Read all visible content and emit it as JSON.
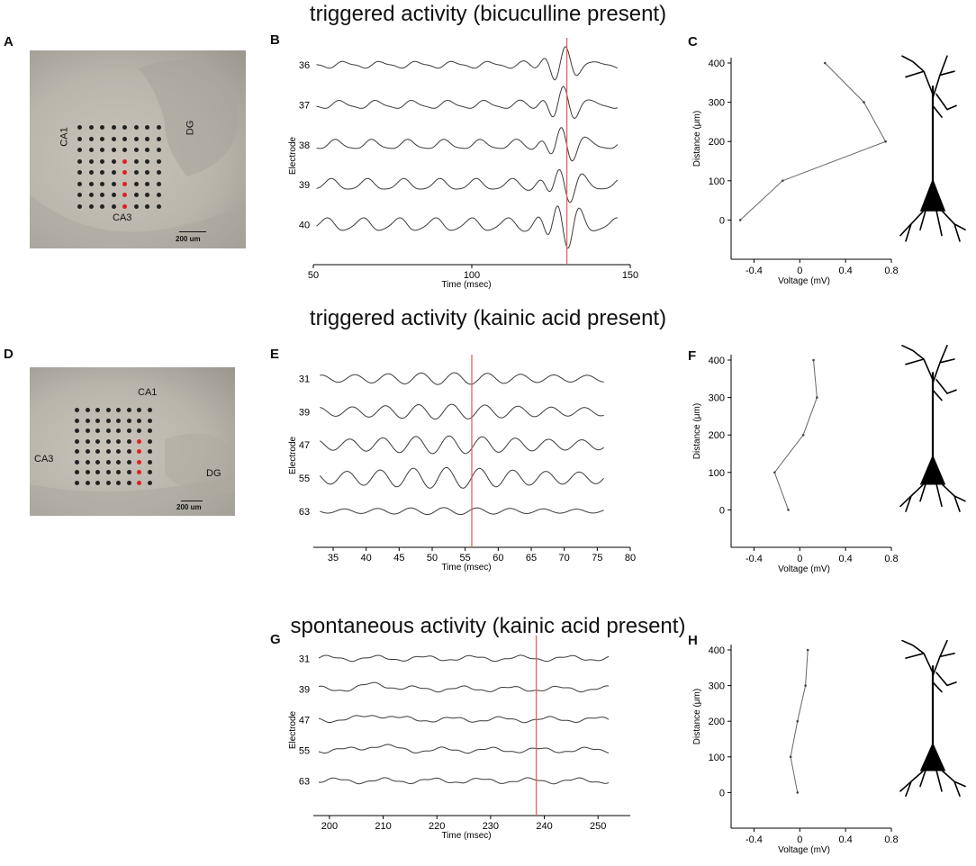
{
  "sections": {
    "top_title": "triggered activity (bicuculline present)",
    "middle_title": "triggered activity (kainic acid present)",
    "bottom_title": "spontaneous activity (kainic acid present)"
  },
  "panel_letters": {
    "A": "A",
    "B": "B",
    "C": "C",
    "D": "D",
    "E": "E",
    "F": "F",
    "G": "G",
    "H": "H"
  },
  "photo_A": {
    "labels": [
      "CA1",
      "DG",
      "CA3"
    ],
    "scale_bar": "200 um",
    "highlight_column": 4
  },
  "photo_D": {
    "labels": [
      "CA1",
      "CA3",
      "DG"
    ],
    "scale_bar": "200 um",
    "highlight_column": 6
  },
  "colors": {
    "trace": "#3a3a3a",
    "marker": "#e8605a",
    "electrode_dot": "#222222",
    "electrode_highlight": "#e02020"
  },
  "chart_data": [
    {
      "panel": "B",
      "type": "line",
      "xlabel": "Time (msec)",
      "ylabel": "Electrode",
      "xlim": [
        50,
        150
      ],
      "xticks": [
        50,
        100,
        150
      ],
      "electrodes": [
        "36",
        "37",
        "38",
        "39",
        "40"
      ],
      "marker_x": 130
    },
    {
      "panel": "C",
      "type": "line",
      "xlabel": "Voltage (mV)",
      "ylabel": "Distance (μm)",
      "xlim": [
        -0.6,
        0.8
      ],
      "ylim": [
        -100,
        400
      ],
      "xticks": [
        -0.4,
        0,
        0.4,
        0.8
      ],
      "xtick_labels": [
        "-0.4",
        "0",
        "0.4",
        "0.8"
      ],
      "yticks": [
        0,
        100,
        200,
        300,
        400
      ],
      "points": [
        [
          -0.52,
          0
        ],
        [
          -0.15,
          100
        ],
        [
          0.75,
          200
        ],
        [
          0.56,
          300
        ],
        [
          0.22,
          400
        ]
      ]
    },
    {
      "panel": "E",
      "type": "line",
      "xlabel": "Time (msec)",
      "ylabel": "Electrode",
      "xlim": [
        32,
        80
      ],
      "xticks": [
        35,
        40,
        45,
        50,
        55,
        60,
        65,
        70,
        75,
        80
      ],
      "electrodes": [
        "31",
        "39",
        "47",
        "55",
        "63"
      ],
      "marker_x": 56
    },
    {
      "panel": "F",
      "type": "line",
      "xlabel": "Voltage (mV)",
      "ylabel": "Distance (μm)",
      "xlim": [
        -0.6,
        0.8
      ],
      "ylim": [
        -100,
        400
      ],
      "xticks": [
        -0.4,
        0,
        0.4,
        0.8
      ],
      "xtick_labels": [
        "-0.4",
        "0",
        "0.4",
        "0.8"
      ],
      "yticks": [
        0,
        100,
        200,
        300,
        400
      ],
      "points": [
        [
          -0.1,
          0
        ],
        [
          -0.22,
          100
        ],
        [
          0.03,
          200
        ],
        [
          0.15,
          300
        ],
        [
          0.12,
          400
        ]
      ]
    },
    {
      "panel": "G",
      "type": "line",
      "xlabel": "Time (msec)",
      "ylabel": "Electrode",
      "xlim": [
        197,
        256
      ],
      "xticks": [
        200,
        210,
        220,
        230,
        240,
        250
      ],
      "electrodes": [
        "31",
        "39",
        "47",
        "55",
        "63"
      ],
      "marker_x": 238.5
    },
    {
      "panel": "H",
      "type": "line",
      "xlabel": "Voltage (mV)",
      "ylabel": "Distance (μm)",
      "xlim": [
        -0.6,
        0.8
      ],
      "ylim": [
        -100,
        400
      ],
      "xticks": [
        -0.4,
        0,
        0.4,
        0.8
      ],
      "xtick_labels": [
        "-0.4",
        "0",
        "0.4",
        "0.8"
      ],
      "yticks": [
        0,
        100,
        200,
        300,
        400
      ],
      "points": [
        [
          -0.02,
          0
        ],
        [
          -0.08,
          100
        ],
        [
          -0.02,
          200
        ],
        [
          0.05,
          300
        ],
        [
          0.07,
          400
        ]
      ]
    }
  ]
}
